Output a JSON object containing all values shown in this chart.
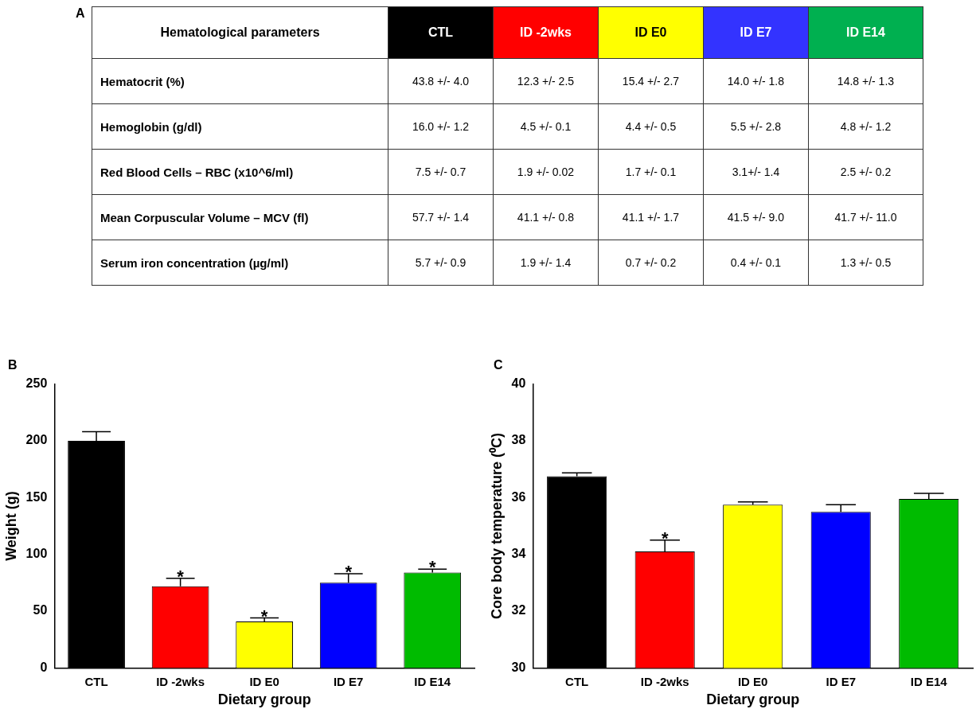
{
  "chart_data": [
    {
      "type": "heatmap",
      "title": "A",
      "ylabel": "Hematological parameters",
      "categories": [
        "CTL",
        "ID -2wks",
        "ID E0",
        "ID E7",
        "ID E14"
      ],
      "colors": [
        "#000000",
        "#ff0000",
        "#ffff00",
        "#3333ff",
        "#00b050"
      ],
      "y_categories": [
        "Hematocrit (%)",
        "Hemoglobin (g/dl)",
        "Red Blood Cells – RBC (x10^6/ml)",
        "Mean Corpuscular Volume – MCV (fl)",
        "Serum iron concentration (µg/ml)"
      ],
      "cells": [
        [
          null,
          null,
          null,
          null,
          null
        ],
        [
          null,
          null,
          null,
          null,
          null
        ],
        [
          null,
          null,
          null,
          null,
          null
        ],
        [
          null,
          null,
          null,
          null,
          null
        ],
        [
          null,
          null,
          null,
          null,
          null
        ]
      ],
      "cell_labels": [
        [
          "43.8 +/- 4.0",
          "12.3 +/- 2.5",
          "15.4 +/- 2.7",
          "14.0 +/- 1.8",
          "14.8 +/- 1.3"
        ],
        [
          "16.0 +/- 1.2",
          "4.5 +/- 0.1",
          "4.4 +/- 0.5",
          "5.5 +/- 2.8",
          "4.8 +/- 1.2"
        ],
        [
          "7.5 +/- 0.7",
          "1.9 +/- 0.02",
          "1.7 +/- 0.1",
          "3.1+/- 1.4",
          "2.5 +/- 0.2"
        ],
        [
          "57.7 +/- 1.4",
          "41.1 +/- 0.8",
          "41.1 +/- 1.7",
          "41.5 +/- 9.0",
          "41.7 +/- 11.0"
        ],
        [
          "5.7 +/- 0.9",
          "1.9 +/- 1.4",
          "0.7 +/- 0.2",
          "0.4 +/- 0.1",
          "1.3 +/- 0.5"
        ]
      ]
    },
    {
      "type": "bar",
      "title": "B",
      "xlabel": "Dietary group",
      "ylabel": "Weight (g)",
      "categories": [
        "CTL",
        "ID -2wks",
        "ID E0",
        "ID E7",
        "ID E14"
      ],
      "values": [
        200,
        72,
        41,
        75,
        84
      ],
      "errors": [
        8,
        7,
        3,
        8,
        3
      ],
      "colors": [
        "#000000",
        "#ff0000",
        "#ffff00",
        "#0000ff",
        "#00bb00"
      ],
      "ylim": [
        0,
        250
      ],
      "yticks": [
        0,
        50,
        100,
        150,
        200,
        250
      ],
      "annotations": [
        {
          "text": "*",
          "x": "ID -2wks",
          "y": 79
        },
        {
          "text": "*",
          "x": "ID E0",
          "y": 44
        },
        {
          "text": "*",
          "x": "ID E7",
          "y": 83
        },
        {
          "text": "*",
          "x": "ID E14",
          "y": 87
        }
      ]
    },
    {
      "type": "bar",
      "title": "C",
      "xlabel": "Dietary group",
      "ylabel": "Core body temperature (⁰C)",
      "categories": [
        "CTL",
        "ID -2wks",
        "ID E0",
        "ID E7",
        "ID E14"
      ],
      "values": [
        36.75,
        34.1,
        35.75,
        35.5,
        35.95
      ],
      "errors": [
        0.12,
        0.4,
        0.1,
        0.25,
        0.2
      ],
      "colors": [
        "#000000",
        "#ff0000",
        "#ffff00",
        "#0000ff",
        "#00bb00"
      ],
      "ylim": [
        30,
        40
      ],
      "yticks": [
        30,
        32,
        34,
        36,
        38,
        40
      ],
      "annotations": [
        {
          "text": "*",
          "x": "ID -2wks",
          "y": 34.5
        }
      ]
    }
  ]
}
